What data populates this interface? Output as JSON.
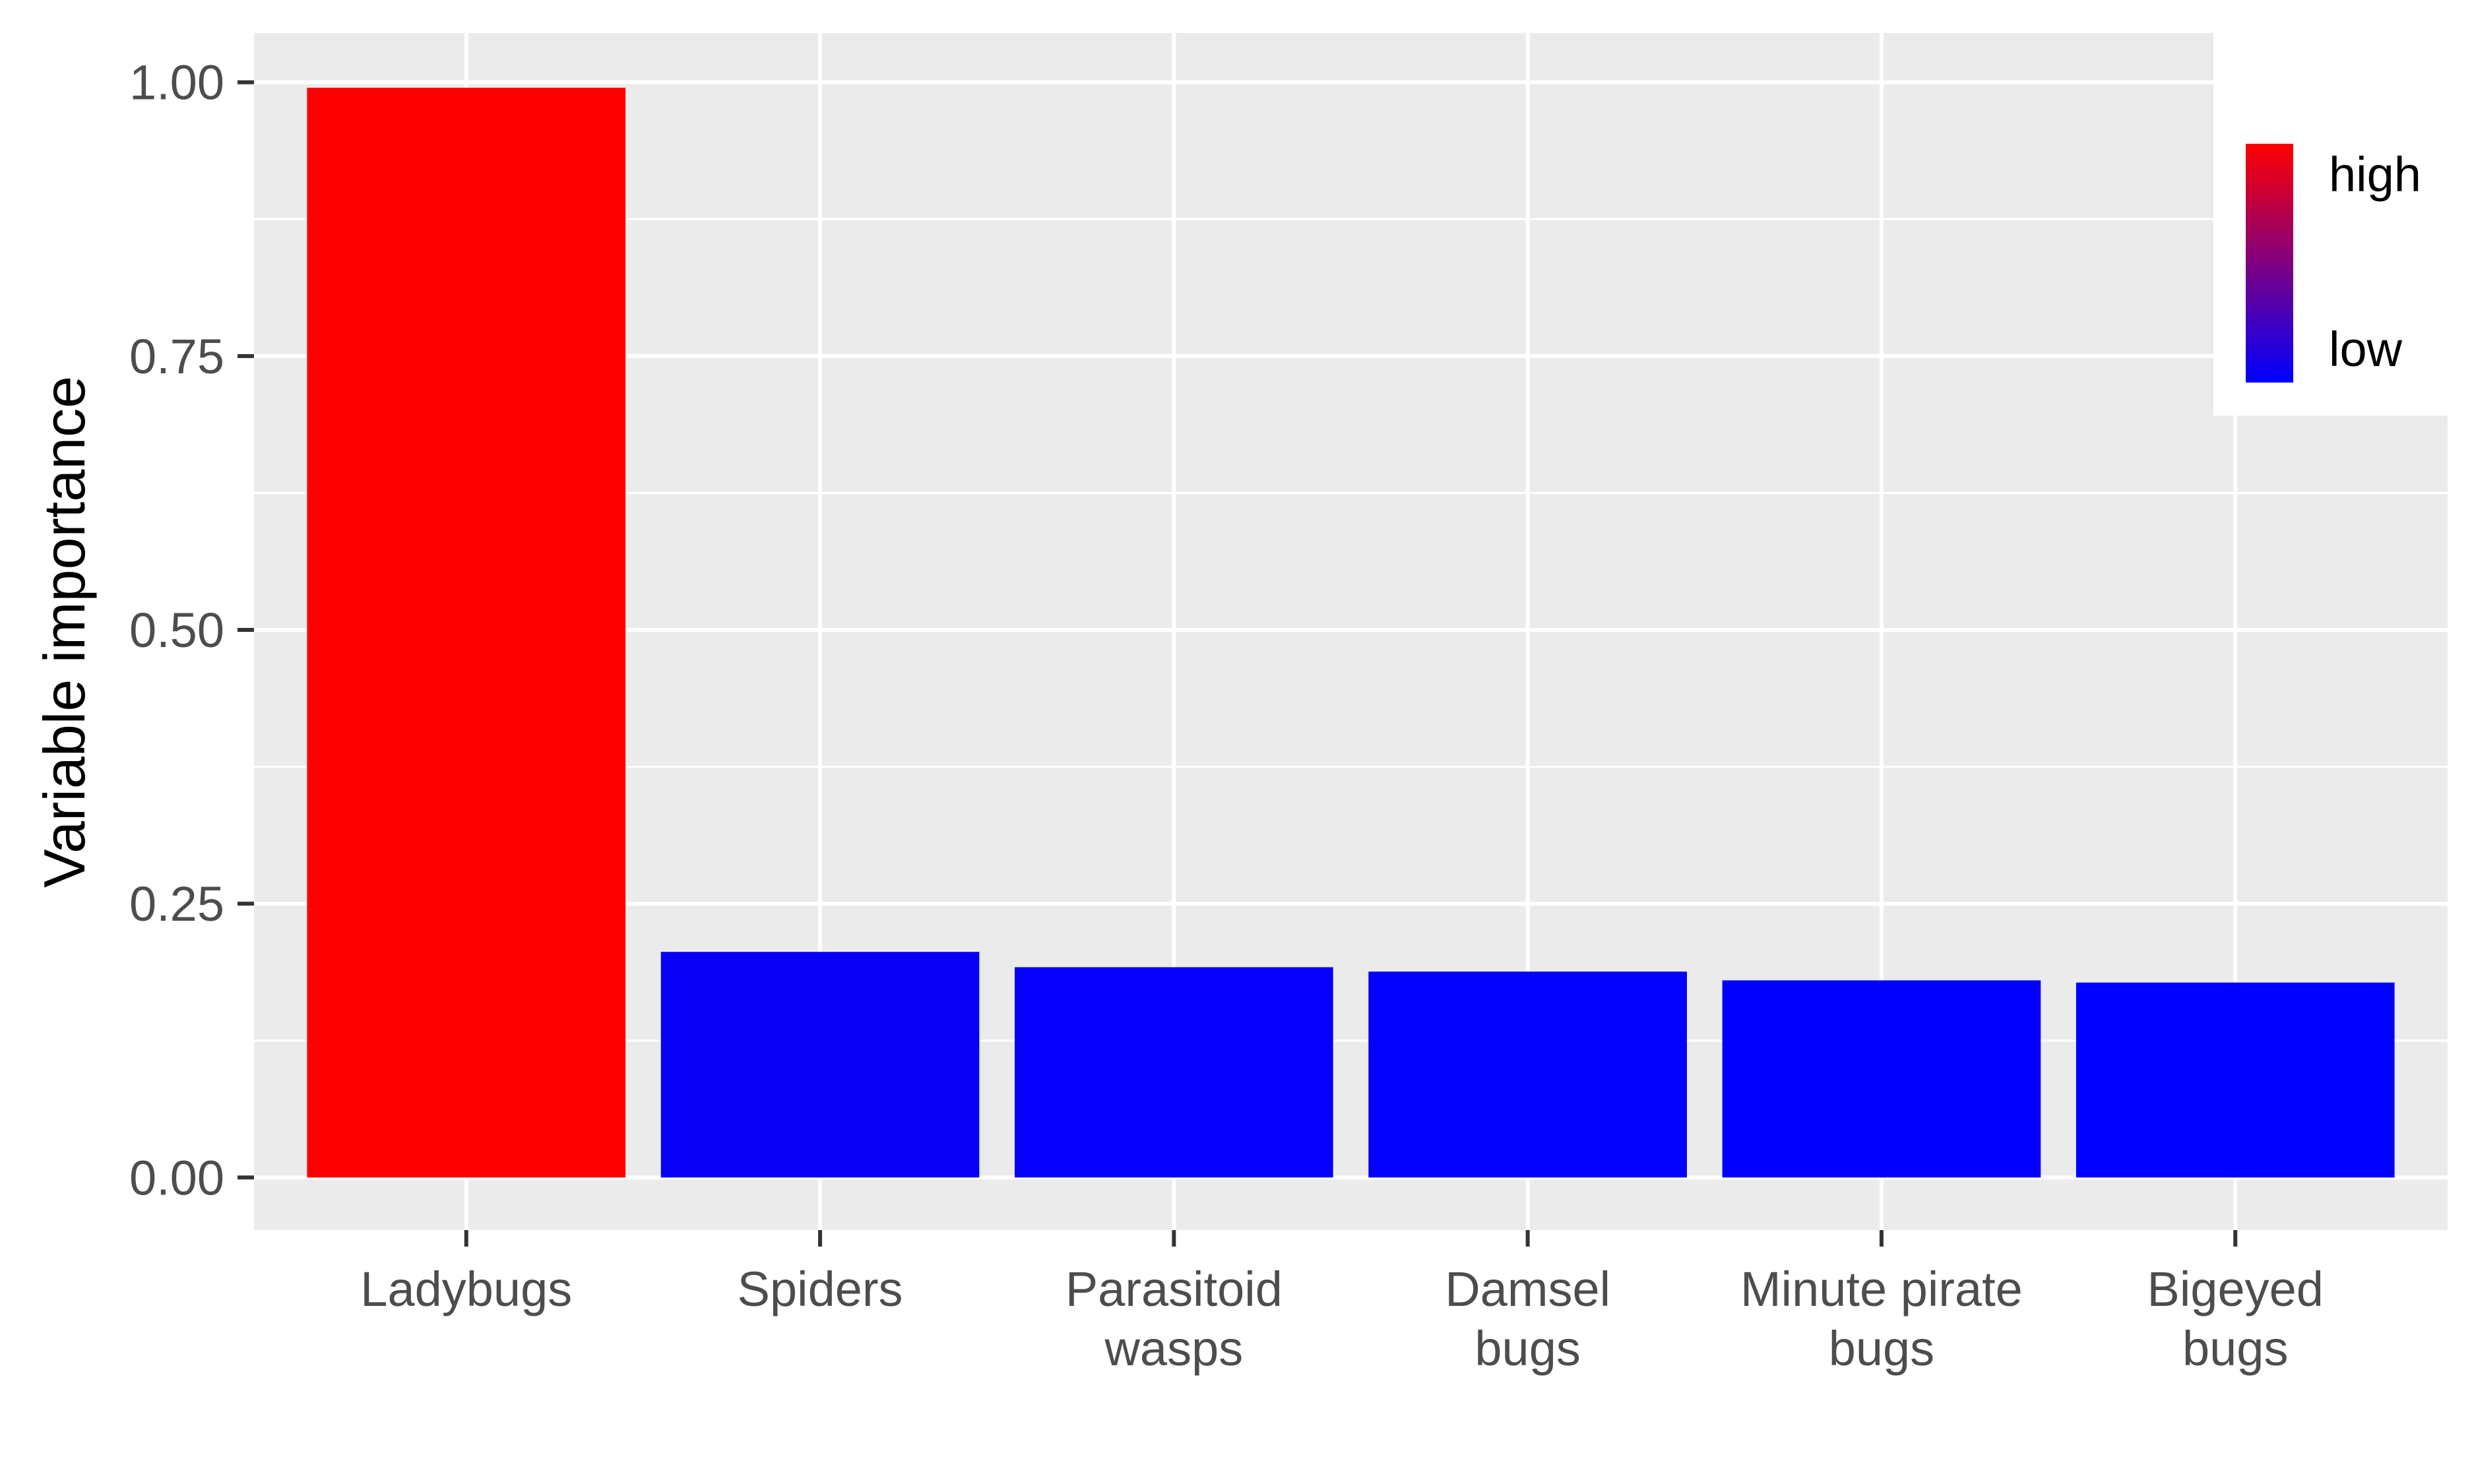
{
  "chart_data": {
    "type": "bar",
    "title": "",
    "xlabel": "",
    "ylabel": "Variable importance",
    "categories": [
      [
        "Ladybugs"
      ],
      [
        "Spiders"
      ],
      [
        "Parasitoid",
        "wasps"
      ],
      [
        "Damsel",
        "bugs"
      ],
      [
        "Minute pirate",
        "bugs"
      ],
      [
        "Bigeyed",
        "bugs"
      ]
    ],
    "values": [
      0.995,
      0.206,
      0.192,
      0.188,
      0.18,
      0.178
    ],
    "ylim": [
      -0.048,
      1.045
    ],
    "yticks": [
      0.0,
      0.25,
      0.5,
      0.75,
      1.0
    ],
    "ytick_labels": [
      "0.00",
      "0.25",
      "0.50",
      "0.75",
      "1.00"
    ],
    "grid": true,
    "color_scale": {
      "low": "#0000ff",
      "high": "#ff0000"
    },
    "legend": {
      "position": "top-right",
      "high_label": "high",
      "low_label": "low"
    },
    "colors": {
      "panel_background": "#ebebeb",
      "grid_line": "#ffffff",
      "tick_text": "#4d4d4d",
      "tick_mark": "#333333"
    }
  }
}
